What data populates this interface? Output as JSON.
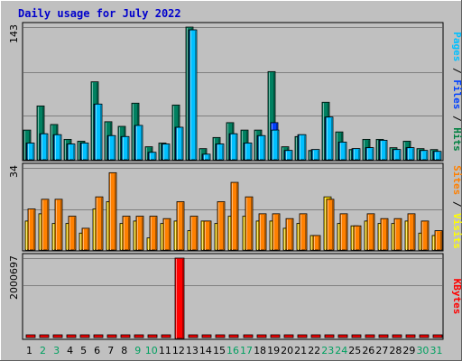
{
  "chart_data": {
    "type": "bar",
    "title": "Daily usage for July 2022",
    "categories": [
      "1",
      "2",
      "3",
      "4",
      "5",
      "6",
      "7",
      "8",
      "9",
      "10",
      "11",
      "12",
      "13",
      "14",
      "15",
      "16",
      "17",
      "18",
      "19",
      "20",
      "21",
      "22",
      "23",
      "24",
      "25",
      "26",
      "27",
      "28",
      "29",
      "30",
      "31"
    ],
    "weekend_days": [
      2,
      3,
      9,
      10,
      16,
      17,
      23,
      24,
      30,
      31
    ],
    "panels": [
      {
        "name": "hits-pages-files",
        "ymax": 143,
        "ymax_label": "143",
        "side_label": [
          "Pages",
          " / ",
          "Files",
          " / ",
          "Hits"
        ],
        "side_colors": [
          "#00c0ff",
          "#000000",
          "#0040ff",
          "#000000",
          "#008040"
        ],
        "series": [
          {
            "name": "Hits",
            "color": "#008060",
            "values": [
              32,
              58,
              38,
              22,
              20,
              84,
              41,
              36,
              61,
              14,
              18,
              59,
              143,
              12,
              24,
              40,
              32,
              32,
              95,
              14,
              25,
              10,
              62,
              30,
              11,
              22,
              22,
              13,
              20,
              12,
              11
            ]
          },
          {
            "name": "Files",
            "color": "#0040ff",
            "values": [
              18,
              28,
              27,
              17,
              18,
              60,
              26,
              25,
              37,
              8,
              17,
              35,
              140,
              6,
              17,
              28,
              18,
              26,
              40,
              10,
              27,
              11,
              46,
              19,
              12,
              13,
              21,
              11,
              13,
              10,
              9
            ]
          },
          {
            "name": "Pages",
            "color": "#00c0ff",
            "values": [
              18,
              28,
              27,
              17,
              18,
              60,
              26,
              25,
              37,
              8,
              17,
              35,
              140,
              6,
              17,
              28,
              18,
              26,
              32,
              10,
              27,
              11,
              46,
              19,
              12,
              13,
              21,
              11,
              13,
              10,
              9
            ]
          }
        ]
      },
      {
        "name": "visits-sites",
        "ymax": 34,
        "ymax_label": "34",
        "side_label": [
          "Sites",
          " / ",
          "Visits"
        ],
        "side_colors": [
          "#ff8000",
          "#000000",
          "#ffff00"
        ],
        "series": [
          {
            "name": "Visits",
            "color": "#ffd700",
            "values": [
              12,
              15,
              11,
              11,
              7,
              17,
              20,
              11,
              12,
              5,
              11,
              12,
              8,
              12,
              11,
              14,
              14,
              12,
              12,
              9,
              11,
              6,
              22,
              11,
              10,
              12,
              11,
              11,
              12,
              7,
              6
            ]
          },
          {
            "name": "Sites",
            "color": "#ff8000",
            "values": [
              17,
              21,
              21,
              14,
              9,
              22,
              32,
              14,
              14,
              14,
              13,
              20,
              14,
              12,
              20,
              28,
              22,
              15,
              15,
              13,
              15,
              6,
              21,
              15,
              10,
              15,
              13,
              13,
              15,
              12,
              8
            ]
          }
        ]
      },
      {
        "name": "kbytes",
        "ymax": 2000697,
        "ymax_label": "2000697",
        "side_label": [
          "KBytes"
        ],
        "side_colors": [
          "#ff0000"
        ],
        "series": [
          {
            "name": "KBytes",
            "color": "#ff0000",
            "values": [
              0,
              0,
              0,
              0,
              0,
              0,
              0,
              0,
              0,
              0,
              0,
              2000697,
              0,
              0,
              0,
              0,
              0,
              0,
              0,
              0,
              0,
              0,
              0,
              0,
              0,
              0,
              0,
              0,
              0,
              0,
              0
            ]
          }
        ]
      }
    ]
  }
}
